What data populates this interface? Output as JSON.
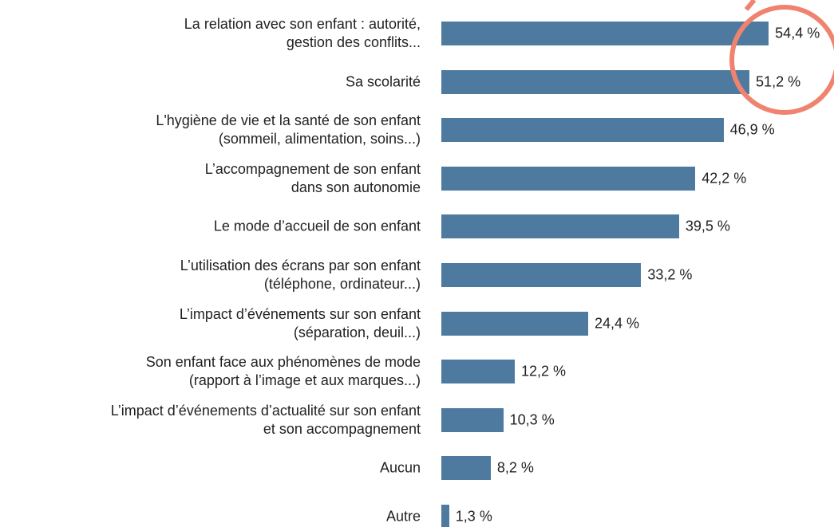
{
  "chart_data": {
    "type": "bar",
    "orientation": "horizontal",
    "color": "#4e7aa0",
    "categories": [
      "La relation avec son enfant : autorité,\ngestion des conflits...",
      "Sa scolarité",
      "L'hygiène de vie et la santé de son enfant\n(sommeil, alimentation, soins...)",
      "L’accompagnement de son enfant\ndans son autonomie",
      "Le mode d’accueil de son enfant",
      "L’utilisation des écrans par son enfant\n(téléphone, ordinateur...)",
      "L’impact d’événements sur son enfant\n(séparation, deuil...)",
      "Son enfant face aux phénomènes de mode\n(rapport à l’image et aux marques...)",
      "L’impact d’événements d’actualité sur son enfant\net son accompagnement",
      "Aucun",
      "Autre"
    ],
    "values": [
      54.4,
      51.2,
      46.9,
      42.2,
      39.5,
      33.2,
      24.4,
      12.2,
      10.3,
      8.2,
      1.3
    ],
    "value_labels": [
      "54,4 %",
      "51,2 %",
      "46,9 %",
      "42,2 %",
      "39,5 %",
      "33,2 %",
      "24,4 %",
      "12,2 %",
      "10,3 %",
      "8,2 %",
      "1,3 %"
    ]
  }
}
